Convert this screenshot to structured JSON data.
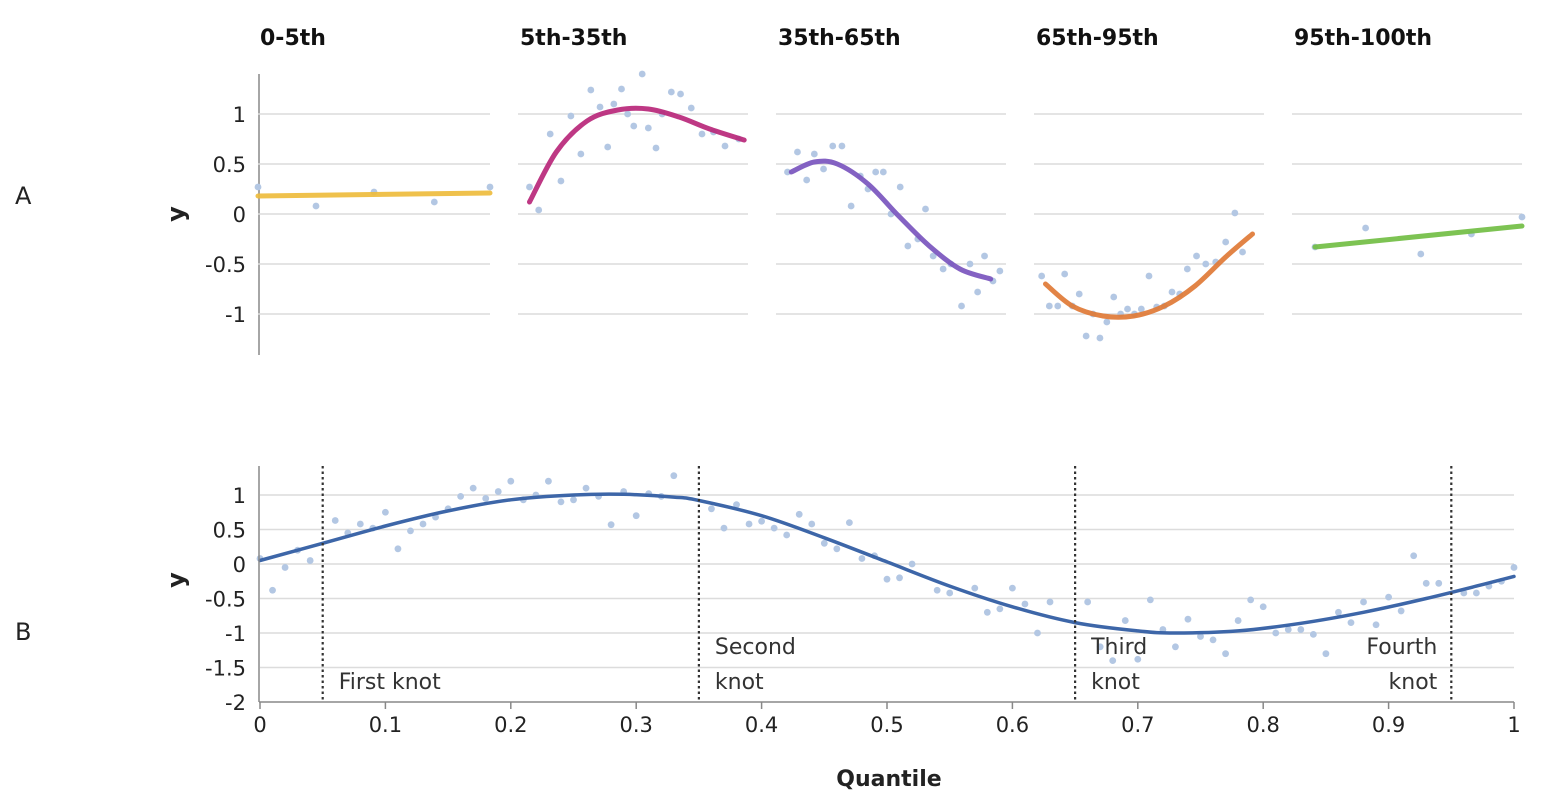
{
  "colors": {
    "points": "#b3c7e3",
    "grid": "#dcdcdc",
    "axis": "#888888",
    "panel_lines": [
      "#eebc3d",
      "#b8277a",
      "#7a55be",
      "#e07a36",
      "#72be44"
    ],
    "panel_b_line": "#3d66a8",
    "knot_line": "#333333"
  },
  "chart_data": [
    {
      "id": "A",
      "type": "scatter",
      "panel_label": "A",
      "ylabel": "y",
      "y_ticks": [
        1,
        0.5,
        0,
        -0.5,
        -1
      ],
      "y_tick_labels": [
        "1",
        "0.5",
        "0",
        "-0.5",
        "-1"
      ],
      "ylim": [
        -1.4,
        1.4
      ],
      "grid": true,
      "facets": [
        {
          "title": "0-5th",
          "xlim": [
            0,
            0.05
          ],
          "fit": "linear",
          "line": [
            [
              0,
              0.18
            ],
            [
              0.05,
              0.21
            ]
          ],
          "points": [
            [
              0.0,
              0.27
            ],
            [
              0.0125,
              0.08
            ],
            [
              0.025,
              0.22
            ],
            [
              0.038,
              0.12
            ],
            [
              0.05,
              0.27
            ]
          ]
        },
        {
          "title": "5th-35th",
          "xlim": [
            0.05,
            0.35
          ],
          "fit": "curve",
          "line": [
            [
              0.065,
              0.12
            ],
            [
              0.1,
              0.62
            ],
            [
              0.14,
              0.93
            ],
            [
              0.18,
              1.04
            ],
            [
              0.22,
              1.05
            ],
            [
              0.26,
              0.97
            ],
            [
              0.3,
              0.85
            ],
            [
              0.345,
              0.74
            ]
          ],
          "points": [
            [
              0.065,
              0.27
            ],
            [
              0.077,
              0.04
            ],
            [
              0.092,
              0.8
            ],
            [
              0.106,
              0.33
            ],
            [
              0.119,
              0.98
            ],
            [
              0.132,
              0.6
            ],
            [
              0.145,
              1.24
            ],
            [
              0.157,
              1.07
            ],
            [
              0.167,
              0.67
            ],
            [
              0.175,
              1.1
            ],
            [
              0.185,
              1.25
            ],
            [
              0.193,
              1.0
            ],
            [
              0.201,
              0.88
            ],
            [
              0.212,
              1.4
            ],
            [
              0.22,
              0.86
            ],
            [
              0.23,
              0.66
            ],
            [
              0.238,
              1.0
            ],
            [
              0.25,
              1.22
            ],
            [
              0.262,
              1.2
            ],
            [
              0.276,
              1.06
            ],
            [
              0.29,
              0.8
            ],
            [
              0.305,
              0.82
            ],
            [
              0.32,
              0.68
            ],
            [
              0.338,
              0.75
            ]
          ]
        },
        {
          "title": "35th-65th",
          "xlim": [
            0.35,
            0.65
          ],
          "fit": "curve",
          "line": [
            [
              0.37,
              0.42
            ],
            [
              0.4,
              0.52
            ],
            [
              0.43,
              0.5
            ],
            [
              0.47,
              0.3
            ],
            [
              0.51,
              -0.02
            ],
            [
              0.55,
              -0.32
            ],
            [
              0.59,
              -0.55
            ],
            [
              0.63,
              -0.65
            ]
          ],
          "points": [
            [
              0.365,
              0.42
            ],
            [
              0.378,
              0.62
            ],
            [
              0.39,
              0.34
            ],
            [
              0.4,
              0.6
            ],
            [
              0.412,
              0.45
            ],
            [
              0.424,
              0.68
            ],
            [
              0.436,
              0.68
            ],
            [
              0.448,
              0.08
            ],
            [
              0.46,
              0.38
            ],
            [
              0.47,
              0.25
            ],
            [
              0.48,
              0.42
            ],
            [
              0.49,
              0.42
            ],
            [
              0.5,
              0.0
            ],
            [
              0.512,
              0.27
            ],
            [
              0.522,
              -0.32
            ],
            [
              0.535,
              -0.25
            ],
            [
              0.545,
              0.05
            ],
            [
              0.555,
              -0.42
            ],
            [
              0.568,
              -0.55
            ],
            [
              0.578,
              -0.5
            ],
            [
              0.592,
              -0.92
            ],
            [
              0.603,
              -0.5
            ],
            [
              0.613,
              -0.78
            ],
            [
              0.622,
              -0.42
            ],
            [
              0.633,
              -0.67
            ],
            [
              0.642,
              -0.57
            ]
          ]
        },
        {
          "title": "65th-95th",
          "xlim": [
            0.65,
            0.95
          ],
          "fit": "curve",
          "line": [
            [
              0.665,
              -0.7
            ],
            [
              0.7,
              -0.92
            ],
            [
              0.74,
              -1.02
            ],
            [
              0.78,
              -1.02
            ],
            [
              0.82,
              -0.92
            ],
            [
              0.86,
              -0.72
            ],
            [
              0.9,
              -0.43
            ],
            [
              0.935,
              -0.2
            ]
          ],
          "points": [
            [
              0.66,
              -0.62
            ],
            [
              0.67,
              -0.92
            ],
            [
              0.681,
              -0.92
            ],
            [
              0.69,
              -0.6
            ],
            [
              0.7,
              -0.92
            ],
            [
              0.709,
              -0.8
            ],
            [
              0.718,
              -1.22
            ],
            [
              0.727,
              -1.0
            ],
            [
              0.736,
              -1.24
            ],
            [
              0.745,
              -1.08
            ],
            [
              0.754,
              -0.83
            ],
            [
              0.763,
              -1.0
            ],
            [
              0.772,
              -0.95
            ],
            [
              0.781,
              -1.0
            ],
            [
              0.79,
              -0.95
            ],
            [
              0.8,
              -0.62
            ],
            [
              0.81,
              -0.93
            ],
            [
              0.82,
              -0.92
            ],
            [
              0.83,
              -0.78
            ],
            [
              0.84,
              -0.8
            ],
            [
              0.85,
              -0.55
            ],
            [
              0.862,
              -0.42
            ],
            [
              0.874,
              -0.5
            ],
            [
              0.887,
              -0.48
            ],
            [
              0.9,
              -0.28
            ],
            [
              0.912,
              0.01
            ],
            [
              0.922,
              -0.38
            ]
          ]
        },
        {
          "title": "95th-100th",
          "xlim": [
            0.95,
            1.0
          ],
          "fit": "linear",
          "line": [
            [
              0.955,
              -0.33
            ],
            [
              1.0,
              -0.12
            ]
          ],
          "points": [
            [
              0.955,
              -0.33
            ],
            [
              0.966,
              -0.14
            ],
            [
              0.978,
              -0.4
            ],
            [
              0.989,
              -0.2
            ],
            [
              1.0,
              -0.03
            ]
          ]
        }
      ]
    },
    {
      "id": "B",
      "type": "line",
      "panel_label": "B",
      "ylabel": "y",
      "xlabel": "Quantile",
      "xlim": [
        0,
        1
      ],
      "ylim": [
        -2,
        1.4
      ],
      "x_ticks": [
        0,
        0.1,
        0.2,
        0.3,
        0.4,
        0.5,
        0.6,
        0.7,
        0.8,
        0.9,
        1
      ],
      "x_tick_labels": [
        "0",
        "0.1",
        "0.2",
        "0.3",
        "0.4",
        "0.5",
        "0.6",
        "0.7",
        "0.8",
        "0.9",
        "1"
      ],
      "y_ticks": [
        1,
        0.5,
        0,
        -0.5,
        -1,
        -1.5,
        -2
      ],
      "y_tick_labels": [
        "1",
        "0.5",
        "0",
        "-0.5",
        "-1",
        "-1.5",
        "-2"
      ],
      "grid": true,
      "knots": [
        {
          "x": 0.05,
          "label_lines": [
            "First knot"
          ],
          "label_side": "right"
        },
        {
          "x": 0.35,
          "label_lines": [
            "Second",
            "knot"
          ],
          "label_side": "right"
        },
        {
          "x": 0.65,
          "label_lines": [
            "Third",
            "knot"
          ],
          "label_side": "right"
        },
        {
          "x": 0.95,
          "label_lines": [
            "Fourth",
            "knot"
          ],
          "label_side": "left"
        }
      ],
      "curve": [
        [
          0,
          0.05
        ],
        [
          0.05,
          0.3
        ],
        [
          0.1,
          0.55
        ],
        [
          0.15,
          0.77
        ],
        [
          0.2,
          0.93
        ],
        [
          0.25,
          1.0
        ],
        [
          0.29,
          1.01
        ],
        [
          0.33,
          0.97
        ],
        [
          0.35,
          0.92
        ],
        [
          0.4,
          0.7
        ],
        [
          0.45,
          0.38
        ],
        [
          0.5,
          0.03
        ],
        [
          0.55,
          -0.32
        ],
        [
          0.6,
          -0.62
        ],
        [
          0.65,
          -0.85
        ],
        [
          0.7,
          -0.97
        ],
        [
          0.73,
          -1.0
        ],
        [
          0.78,
          -0.97
        ],
        [
          0.83,
          -0.86
        ],
        [
          0.88,
          -0.7
        ],
        [
          0.93,
          -0.5
        ],
        [
          0.97,
          -0.32
        ],
        [
          1.0,
          -0.18
        ]
      ],
      "points": [
        [
          0.0,
          0.08
        ],
        [
          0.01,
          -0.38
        ],
        [
          0.02,
          -0.05
        ],
        [
          0.03,
          0.2
        ],
        [
          0.04,
          0.05
        ],
        [
          0.06,
          0.63
        ],
        [
          0.07,
          0.45
        ],
        [
          0.08,
          0.58
        ],
        [
          0.09,
          0.52
        ],
        [
          0.1,
          0.75
        ],
        [
          0.11,
          0.22
        ],
        [
          0.12,
          0.48
        ],
        [
          0.13,
          0.58
        ],
        [
          0.14,
          0.68
        ],
        [
          0.15,
          0.8
        ],
        [
          0.16,
          0.98
        ],
        [
          0.17,
          1.1
        ],
        [
          0.18,
          0.95
        ],
        [
          0.19,
          1.05
        ],
        [
          0.2,
          1.2
        ],
        [
          0.21,
          0.93
        ],
        [
          0.22,
          1.0
        ],
        [
          0.23,
          1.2
        ],
        [
          0.24,
          0.9
        ],
        [
          0.25,
          0.93
        ],
        [
          0.26,
          1.1
        ],
        [
          0.27,
          0.98
        ],
        [
          0.28,
          0.57
        ],
        [
          0.29,
          1.05
        ],
        [
          0.3,
          0.7
        ],
        [
          0.31,
          1.02
        ],
        [
          0.32,
          0.98
        ],
        [
          0.33,
          1.28
        ],
        [
          0.36,
          0.8
        ],
        [
          0.37,
          0.52
        ],
        [
          0.38,
          0.86
        ],
        [
          0.39,
          0.58
        ],
        [
          0.4,
          0.62
        ],
        [
          0.41,
          0.52
        ],
        [
          0.42,
          0.42
        ],
        [
          0.43,
          0.72
        ],
        [
          0.44,
          0.58
        ],
        [
          0.45,
          0.3
        ],
        [
          0.46,
          0.22
        ],
        [
          0.47,
          0.6
        ],
        [
          0.48,
          0.08
        ],
        [
          0.49,
          0.12
        ],
        [
          0.5,
          -0.22
        ],
        [
          0.51,
          -0.2
        ],
        [
          0.52,
          0.0
        ],
        [
          0.54,
          -0.38
        ],
        [
          0.55,
          -0.42
        ],
        [
          0.57,
          -0.35
        ],
        [
          0.58,
          -0.7
        ],
        [
          0.59,
          -0.65
        ],
        [
          0.6,
          -0.35
        ],
        [
          0.61,
          -0.58
        ],
        [
          0.62,
          -1.0
        ],
        [
          0.63,
          -0.55
        ],
        [
          0.66,
          -0.55
        ],
        [
          0.67,
          -1.2
        ],
        [
          0.68,
          -1.4
        ],
        [
          0.69,
          -0.82
        ],
        [
          0.7,
          -1.38
        ],
        [
          0.71,
          -0.52
        ],
        [
          0.72,
          -0.95
        ],
        [
          0.73,
          -1.2
        ],
        [
          0.74,
          -0.8
        ],
        [
          0.75,
          -1.05
        ],
        [
          0.76,
          -1.1
        ],
        [
          0.77,
          -1.3
        ],
        [
          0.78,
          -0.82
        ],
        [
          0.79,
          -0.52
        ],
        [
          0.8,
          -0.62
        ],
        [
          0.81,
          -1.0
        ],
        [
          0.82,
          -0.95
        ],
        [
          0.83,
          -0.95
        ],
        [
          0.84,
          -1.02
        ],
        [
          0.85,
          -1.3
        ],
        [
          0.86,
          -0.7
        ],
        [
          0.87,
          -0.85
        ],
        [
          0.88,
          -0.55
        ],
        [
          0.89,
          -0.88
        ],
        [
          0.9,
          -0.48
        ],
        [
          0.91,
          -0.68
        ],
        [
          0.92,
          0.12
        ],
        [
          0.93,
          -0.28
        ],
        [
          0.94,
          -0.28
        ],
        [
          0.96,
          -0.42
        ],
        [
          0.97,
          -0.42
        ],
        [
          0.98,
          -0.32
        ],
        [
          0.99,
          -0.25
        ],
        [
          1.0,
          -0.05
        ]
      ]
    }
  ]
}
